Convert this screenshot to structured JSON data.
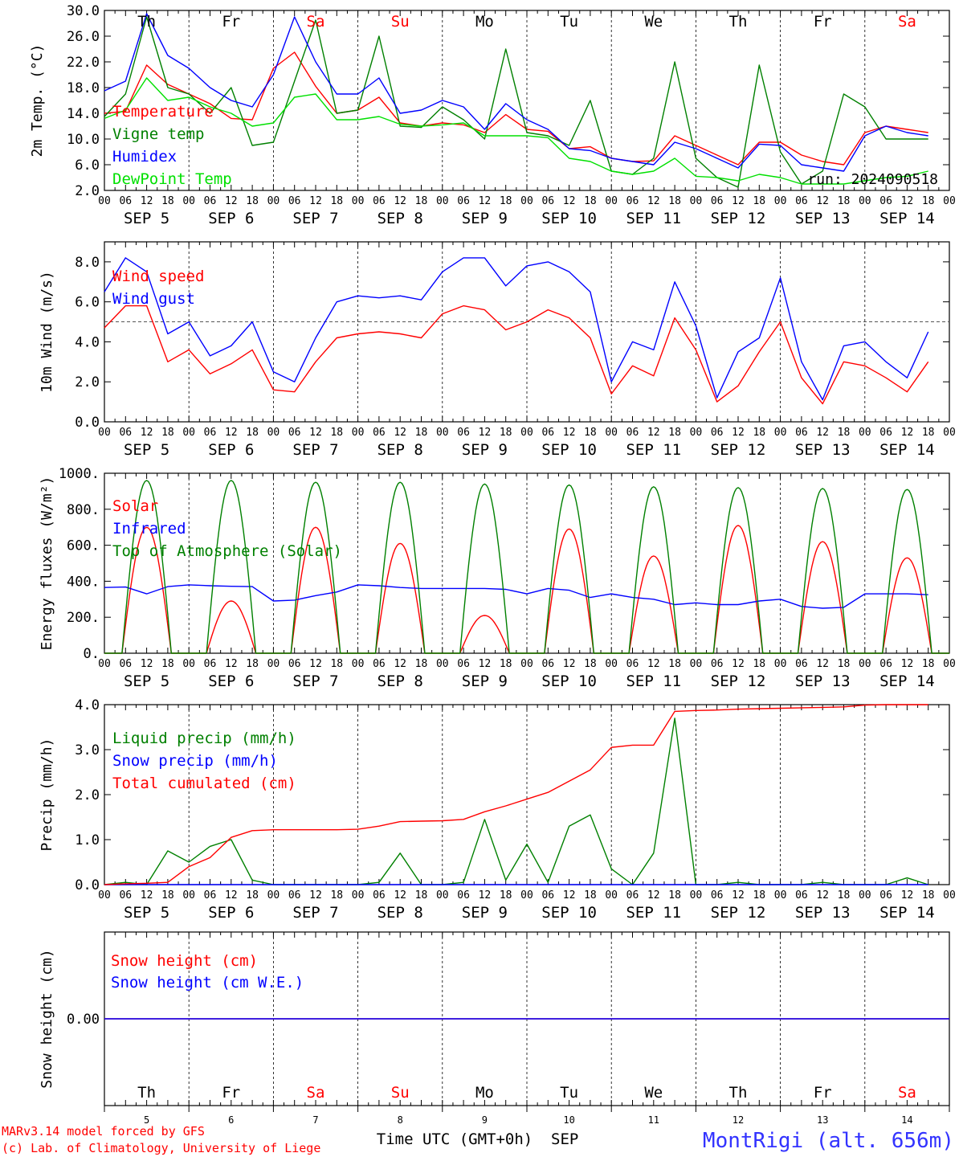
{
  "chart_data": [
    {
      "type": "line",
      "ylabel": "2m Temp. (°C)",
      "ylim": [
        2,
        30
      ],
      "yticks": [
        "2.0",
        "6.0",
        "10.0",
        "14.0",
        "18.0",
        "22.0",
        "26.0",
        "30.0"
      ],
      "legend": "top-left",
      "x_hours": [
        0,
        6,
        12,
        18,
        24,
        30,
        36,
        42,
        48,
        54,
        60,
        66,
        72,
        78,
        84,
        90,
        96,
        102,
        108,
        114,
        120,
        126,
        132,
        138,
        144,
        150,
        156,
        162,
        168,
        174,
        180,
        186,
        192,
        198,
        204,
        210,
        216,
        222,
        228,
        234
      ],
      "series": [
        {
          "name": "Temperature",
          "color": "#ff0000",
          "values": [
            14,
            14.3,
            21.5,
            18.5,
            17,
            15.5,
            13.2,
            13,
            21,
            23.5,
            18.2,
            14,
            14.5,
            16.5,
            12.5,
            12,
            12.5,
            12.2,
            11,
            13.8,
            11.5,
            11.2,
            8.5,
            8.8,
            7,
            6.5,
            6.6,
            10.5,
            9,
            7.5,
            6,
            9.5,
            9.5,
            7.5,
            6.5,
            6,
            11,
            12,
            11.5,
            11
          ]
        },
        {
          "name": "Vigne temp",
          "color": "#008000",
          "values": [
            13.5,
            17,
            29,
            18,
            17,
            14,
            18,
            9,
            9.5,
            19,
            28.5,
            14,
            14.5,
            26,
            12,
            11.8,
            15,
            13,
            10,
            24,
            11,
            10.5,
            9,
            16,
            5,
            4.5,
            7,
            22,
            7,
            4,
            2.5,
            21.5,
            8,
            3,
            5,
            17,
            15,
            10,
            10,
            10
          ]
        },
        {
          "name": "Humidex",
          "color": "#0000ff",
          "values": [
            17.5,
            19,
            29.5,
            23,
            21,
            18,
            16,
            15,
            20,
            29,
            22,
            17,
            17,
            19.5,
            14,
            14.5,
            16,
            15,
            11.5,
            15.5,
            13,
            11.5,
            8.5,
            8.2,
            7,
            6.5,
            6,
            9.5,
            8.5,
            7,
            5.5,
            9.2,
            9,
            6,
            5.5,
            5,
            10.5,
            12,
            11,
            10.5
          ]
        },
        {
          "name": "DewPoint Temp",
          "color": "#00e000",
          "values": [
            13.2,
            14.5,
            19.5,
            16,
            16.5,
            15,
            14,
            12,
            12.5,
            16.5,
            17,
            13,
            13,
            13.5,
            12.3,
            12,
            12.2,
            12.5,
            10.5,
            10.5,
            10.5,
            10.2,
            7,
            6.5,
            5,
            4.5,
            5,
            7,
            4.2,
            4,
            3.5,
            4.5,
            4,
            3,
            3,
            3,
            3.5,
            4,
            4.2,
            5
          ]
        }
      ],
      "annotation": "run: 2024090518"
    },
    {
      "type": "line",
      "ylabel": "10m Wind (m/s)",
      "ylim": [
        0,
        9
      ],
      "yticks": [
        "0.0",
        "2.0",
        "4.0",
        "6.0",
        "8.0"
      ],
      "reference_line": 5,
      "legend": "top-left",
      "x_hours": [
        0,
        6,
        12,
        18,
        24,
        30,
        36,
        42,
        48,
        54,
        60,
        66,
        72,
        78,
        84,
        90,
        96,
        102,
        108,
        114,
        120,
        126,
        132,
        138,
        144,
        150,
        156,
        162,
        168,
        174,
        180,
        186,
        192,
        198,
        204,
        210,
        216,
        222,
        228,
        234
      ],
      "series": [
        {
          "name": "Wind speed",
          "color": "#ff0000",
          "values": [
            4.7,
            5.8,
            5.8,
            3,
            3.6,
            2.4,
            2.9,
            3.6,
            1.6,
            1.5,
            3,
            4.2,
            4.4,
            4.5,
            4.4,
            4.2,
            5.4,
            5.8,
            5.6,
            4.6,
            5,
            5.6,
            5.2,
            4.2,
            1.4,
            2.8,
            2.3,
            5.2,
            3.6,
            1,
            1.8,
            3.5,
            5,
            2.2,
            0.9,
            3,
            2.8,
            2.2,
            1.5,
            3
          ]
        },
        {
          "name": "Wind gust",
          "color": "#0000ff",
          "values": [
            6.5,
            8.2,
            7.5,
            4.4,
            5,
            3.3,
            3.8,
            5,
            2.5,
            2,
            4.2,
            6,
            6.3,
            6.2,
            6.3,
            6.1,
            7.5,
            8.2,
            8.2,
            6.8,
            7.8,
            8,
            7.5,
            6.5,
            2,
            4,
            3.6,
            7,
            4.8,
            1.2,
            3.5,
            4.2,
            7.2,
            3,
            1.1,
            3.8,
            4,
            3,
            2.2,
            4.5
          ]
        }
      ]
    },
    {
      "type": "line",
      "ylabel": "Energy fluxes (W/m²)",
      "ylim": [
        0,
        1000
      ],
      "yticks": [
        "0.",
        "200.",
        "400.",
        "600.",
        "800.",
        "1000."
      ],
      "legend": "top-left",
      "series": [
        {
          "name": "Solar",
          "color": "#ff0000",
          "day_peaks": [
            700,
            290,
            700,
            610,
            210,
            690,
            540,
            710,
            620,
            530
          ]
        },
        {
          "name": "Infrared",
          "color": "#0000ff",
          "x_hours": [
            0,
            6,
            12,
            18,
            24,
            30,
            36,
            42,
            48,
            54,
            60,
            66,
            72,
            78,
            84,
            90,
            96,
            102,
            108,
            114,
            120,
            126,
            132,
            138,
            144,
            150,
            156,
            162,
            168,
            174,
            180,
            186,
            192,
            198,
            204,
            210,
            216,
            222,
            228,
            234
          ],
          "values": [
            365,
            368,
            330,
            370,
            380,
            375,
            372,
            370,
            290,
            295,
            320,
            340,
            380,
            375,
            365,
            360,
            360,
            360,
            360,
            355,
            330,
            360,
            350,
            310,
            330,
            310,
            300,
            270,
            280,
            270,
            270,
            290,
            300,
            260,
            250,
            255,
            330,
            330,
            330,
            325
          ]
        },
        {
          "name": "Top of Atmosphere (Solar)",
          "color": "#008000",
          "day_peaks": [
            960,
            960,
            950,
            950,
            940,
            935,
            925,
            920,
            915,
            910
          ]
        }
      ]
    },
    {
      "type": "line",
      "ylabel": "Precip (mm/h)",
      "ylim": [
        0,
        4
      ],
      "yticks": [
        "0.0",
        "1.0",
        "2.0",
        "3.0",
        "4.0"
      ],
      "legend": "top-left",
      "x_hours": [
        0,
        6,
        12,
        18,
        24,
        30,
        36,
        42,
        48,
        54,
        60,
        66,
        72,
        78,
        84,
        90,
        96,
        102,
        108,
        114,
        120,
        126,
        132,
        138,
        144,
        150,
        156,
        162,
        168,
        174,
        180,
        186,
        192,
        198,
        204,
        210,
        216,
        222,
        228,
        234
      ],
      "series": [
        {
          "name": "Liquid precip (mm/h)",
          "color": "#008000",
          "values": [
            0,
            0.05,
            0,
            0.75,
            0.5,
            0.85,
            1,
            0.1,
            0,
            0,
            0,
            0,
            0,
            0.05,
            0.7,
            0,
            0,
            0.05,
            1.45,
            0.1,
            0.9,
            0.05,
            1.3,
            1.55,
            0.35,
            0,
            0.7,
            3.7,
            0,
            0,
            0.05,
            0,
            0,
            0,
            0.05,
            0,
            0,
            0,
            0.15,
            0
          ]
        },
        {
          "name": "Snow precip (mm/h)",
          "color": "#0000ff",
          "values": [
            0,
            0,
            0,
            0,
            0,
            0,
            0,
            0,
            0,
            0,
            0,
            0,
            0,
            0,
            0,
            0,
            0,
            0,
            0,
            0,
            0,
            0,
            0,
            0,
            0,
            0,
            0,
            0,
            0,
            0,
            0,
            0,
            0,
            0,
            0,
            0,
            0,
            0,
            0,
            0
          ]
        },
        {
          "name": "Total cumulated (cm)",
          "color": "#ff0000",
          "values": [
            0,
            0.02,
            0.03,
            0.05,
            0.4,
            0.6,
            1.05,
            1.2,
            1.22,
            1.22,
            1.22,
            1.22,
            1.23,
            1.3,
            1.4,
            1.41,
            1.42,
            1.45,
            1.62,
            1.75,
            1.9,
            2.05,
            2.3,
            2.55,
            3.05,
            3.1,
            3.1,
            3.85,
            3.87,
            3.88,
            3.9,
            3.91,
            3.92,
            3.93,
            3.94,
            3.95,
            3.99,
            4,
            4,
            4
          ]
        }
      ]
    },
    {
      "type": "line",
      "ylabel": "Snow height (cm)",
      "ylim": [
        -1,
        1
      ],
      "yticks": [
        "0.00"
      ],
      "legend": "top-left",
      "series": [
        {
          "name": "Snow height (cm)",
          "color": "#ff0000",
          "values": [
            0,
            0
          ]
        },
        {
          "name": "Snow height (cm W.E.)",
          "color": "#0000ff",
          "values": [
            0,
            0
          ]
        }
      ],
      "xlabel": "Time UTC (GMT+0h)",
      "month": "SEP",
      "date_numbers": [
        "5",
        "6",
        "7",
        "8",
        "9",
        "10",
        "11",
        "12",
        "13",
        "14"
      ]
    }
  ],
  "axis": {
    "hour_labels": [
      "00",
      "06",
      "12",
      "18"
    ],
    "end_label": "00",
    "date_labels": [
      "SEP  5",
      "SEP  6",
      "SEP  7",
      "SEP  8",
      "SEP  9",
      "SEP 10",
      "SEP 11",
      "SEP 12",
      "SEP 13",
      "SEP 14"
    ],
    "day_names": [
      {
        "label": "Th",
        "color": "#000000"
      },
      {
        "label": "Fr",
        "color": "#000000"
      },
      {
        "label": "Sa",
        "color": "#ff0000"
      },
      {
        "label": "Su",
        "color": "#ff0000"
      },
      {
        "label": "Mo",
        "color": "#000000"
      },
      {
        "label": "Tu",
        "color": "#000000"
      },
      {
        "label": "We",
        "color": "#000000"
      },
      {
        "label": "Th",
        "color": "#000000"
      },
      {
        "label": "Fr",
        "color": "#000000"
      },
      {
        "label": "Sa",
        "color": "#ff0000"
      }
    ]
  },
  "footer": {
    "credit_line1": "MARv3.14 model forced by GFS",
    "credit_line2": "(c) Lab. of Climatology, University of Liege",
    "station": "MontRigi (alt. 656m)"
  }
}
